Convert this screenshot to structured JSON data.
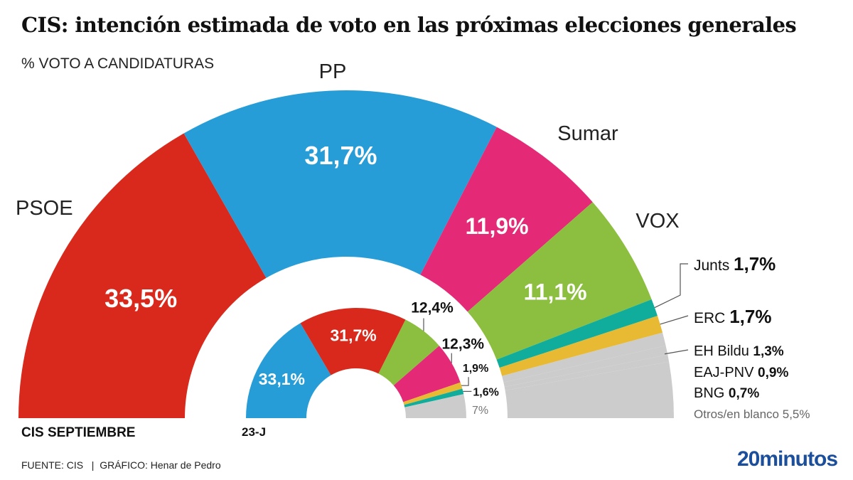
{
  "title": "CIS: intención estimada de voto en las próximas elecciones generales",
  "subtitle": "% VOTO A CANDIDATURAS",
  "footer": {
    "source": "FUENTE: CIS   |  GRÁFICO: Henar de Pedro",
    "brand": "20minutos"
  },
  "chart_data": [
    {
      "type": "pie",
      "subtype": "semicircle-donut",
      "title": "CIS SEPTIEMBRE",
      "unit": "%",
      "slices": [
        {
          "name": "PSOE",
          "value": 33.5,
          "label": "33,5%",
          "color": "#d8291c"
        },
        {
          "name": "PP",
          "value": 31.7,
          "label": "31,7%",
          "color": "#279dd8"
        },
        {
          "name": "Sumar",
          "value": 11.9,
          "label": "11,9%",
          "color": "#e42a76"
        },
        {
          "name": "VOX",
          "value": 11.1,
          "label": "11,1%",
          "color": "#8cbf3f"
        },
        {
          "name": "Junts",
          "value": 1.7,
          "label": "1,7%",
          "color": "#10ad9c"
        },
        {
          "name": "ERC",
          "value": 1.7,
          "label": "1,7%",
          "color": "#e8b932"
        },
        {
          "name": "EH Bildu",
          "value": 1.3,
          "label": "1,3%",
          "color": "#cccccc"
        },
        {
          "name": "EAJ-PNV",
          "value": 0.9,
          "label": "0,9%",
          "color": "#cccccc"
        },
        {
          "name": "BNG",
          "value": 0.7,
          "label": "0,7%",
          "color": "#cccccc"
        },
        {
          "name": "Otros/en blanco",
          "value": 5.5,
          "label": "5,5%",
          "color": "#cccccc"
        }
      ]
    },
    {
      "type": "pie",
      "subtype": "semicircle-donut",
      "title": "23-J",
      "unit": "%",
      "slices": [
        {
          "name": "PP",
          "value": 33.1,
          "label": "33,1%",
          "color": "#279dd8"
        },
        {
          "name": "PSOE",
          "value": 31.7,
          "label": "31,7%",
          "color": "#d8291c"
        },
        {
          "name": "VOX",
          "value": 12.4,
          "label": "12,4%",
          "color": "#8cbf3f"
        },
        {
          "name": "Sumar",
          "value": 12.3,
          "label": "12,3%",
          "color": "#e42a76"
        },
        {
          "name": "ERC",
          "value": 1.9,
          "label": "1,9%",
          "color": "#e8b932"
        },
        {
          "name": "Junts",
          "value": 1.6,
          "label": "1,6%",
          "color": "#10ad9c"
        },
        {
          "name": "Otros",
          "value": 7,
          "label": "7%",
          "color": "#cccccc"
        }
      ]
    }
  ]
}
